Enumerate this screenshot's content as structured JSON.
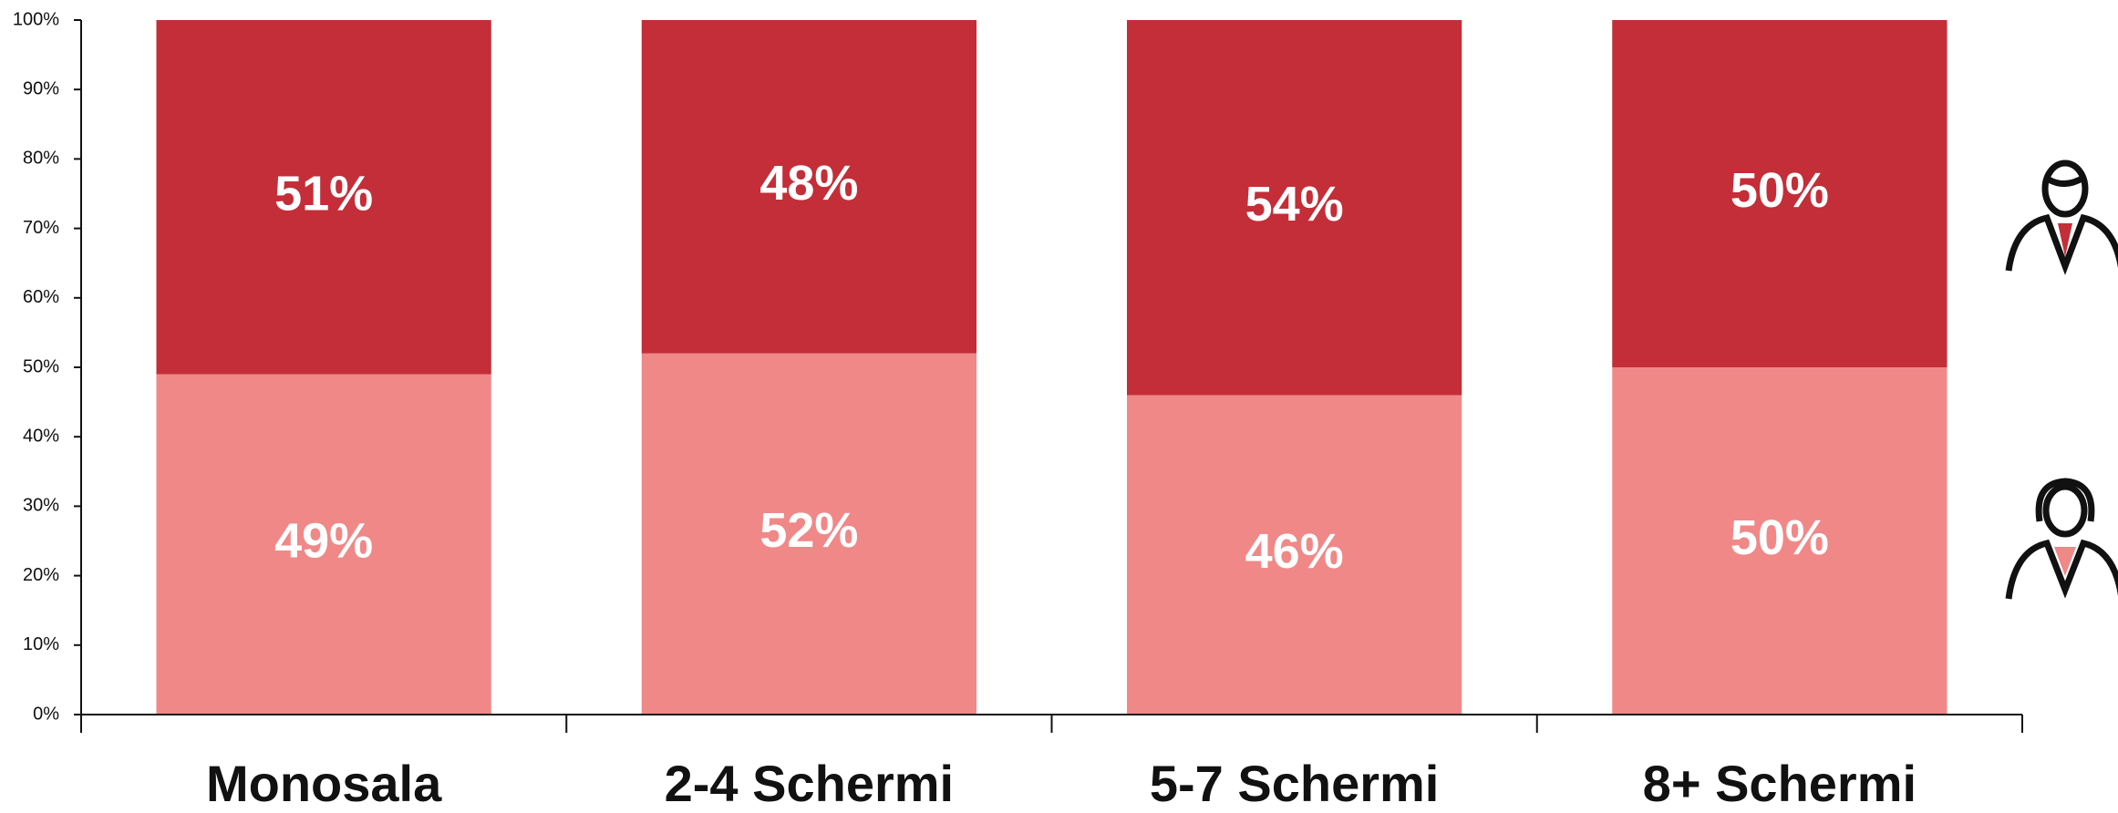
{
  "chart_data": {
    "type": "stacked_bar",
    "categories": [
      "Monosala",
      "2-4 Schermi",
      "5-7 Schermi",
      "8+ Schermi"
    ],
    "series": [
      {
        "color": "#f08888",
        "values": [
          49,
          52,
          46,
          50
        ],
        "value_labels": [
          "49%",
          "52%",
          "46%",
          "50%"
        ]
      },
      {
        "color": "#c32e38",
        "values": [
          51,
          48,
          54,
          50
        ],
        "value_labels": [
          "51%",
          "48%",
          "54%",
          "50%"
        ]
      }
    ],
    "ylim": [
      0,
      100
    ],
    "yticks": [
      {
        "value": 0,
        "label": "0%"
      },
      {
        "value": 10,
        "label": "10%"
      },
      {
        "value": 20,
        "label": "20%"
      },
      {
        "value": 30,
        "label": "30%"
      },
      {
        "value": 40,
        "label": "40%"
      },
      {
        "value": 50,
        "label": "50%"
      },
      {
        "value": 60,
        "label": "60%"
      },
      {
        "value": 70,
        "label": "70%"
      },
      {
        "value": 80,
        "label": "80%"
      },
      {
        "value": 90,
        "label": "90%"
      },
      {
        "value": 100,
        "label": "100%"
      }
    ],
    "grid": false
  }
}
